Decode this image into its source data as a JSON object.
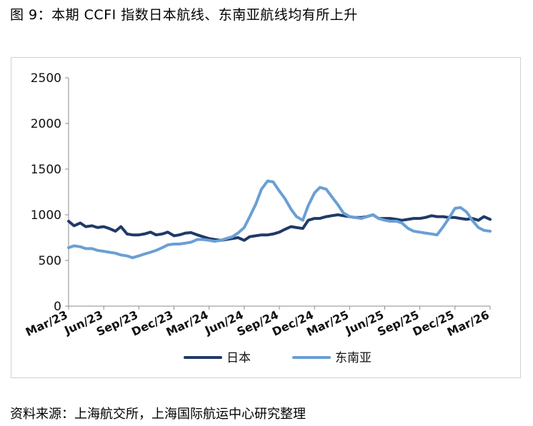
{
  "figure_title": "图 9：本期 CCFI 指数日本航线、东南亚航线均有所上升",
  "source_note": "资料来源：上海航交所，上海国际航运中心研究整理",
  "colors": {
    "japan": "#1f3a68",
    "sea": "#6a9fd4",
    "axis": "#8c8c8c"
  },
  "chart_data": {
    "type": "line",
    "title": "",
    "xlabel": "",
    "ylabel": "",
    "ylim": [
      0,
      2500
    ],
    "yticks": [
      0,
      500,
      1000,
      1500,
      2000,
      2500
    ],
    "xlim": [
      "2023-03",
      "2026-03"
    ],
    "xticks": [
      {
        "label": "Mar/23",
        "x": "2023-03"
      },
      {
        "label": "Jun/23",
        "x": "2023-06"
      },
      {
        "label": "Sep/23",
        "x": "2023-09"
      },
      {
        "label": "Dec/23",
        "x": "2023-12"
      },
      {
        "label": "Mar/24",
        "x": "2024-03"
      },
      {
        "label": "Jun/24",
        "x": "2024-06"
      },
      {
        "label": "Sep/24",
        "x": "2024-09"
      },
      {
        "label": "Dec/24",
        "x": "2024-12"
      },
      {
        "label": "Mar/25",
        "x": "2025-03"
      },
      {
        "label": "Jun/25",
        "x": "2025-06"
      },
      {
        "label": "Sep/25",
        "x": "2025-09"
      },
      {
        "label": "Dec/25",
        "x": "2025-12"
      },
      {
        "label": "Mar/26",
        "x": "2026-03"
      }
    ],
    "grid": false,
    "legend_position": "bottom",
    "series": [
      {
        "name": "日本",
        "color": "#1f3a68",
        "points": [
          [
            "2023-03",
            930
          ],
          [
            "2023-03-15",
            880
          ],
          [
            "2023-04",
            910
          ],
          [
            "2023-04-15",
            870
          ],
          [
            "2023-05",
            880
          ],
          [
            "2023-05-15",
            860
          ],
          [
            "2023-06",
            870
          ],
          [
            "2023-06-15",
            850
          ],
          [
            "2023-07",
            820
          ],
          [
            "2023-07-15",
            870
          ],
          [
            "2023-08",
            790
          ],
          [
            "2023-08-15",
            780
          ],
          [
            "2023-09",
            780
          ],
          [
            "2023-09-15",
            790
          ],
          [
            "2023-10",
            810
          ],
          [
            "2023-10-15",
            780
          ],
          [
            "2023-11",
            790
          ],
          [
            "2023-11-15",
            810
          ],
          [
            "2023-12",
            770
          ],
          [
            "2023-12-15",
            780
          ],
          [
            "2024-01",
            800
          ],
          [
            "2024-01-15",
            805
          ],
          [
            "2024-02",
            780
          ],
          [
            "2024-02-15",
            760
          ],
          [
            "2024-03",
            740
          ],
          [
            "2024-03-15",
            730
          ],
          [
            "2024-04",
            720
          ],
          [
            "2024-04-15",
            730
          ],
          [
            "2024-05",
            740
          ],
          [
            "2024-05-15",
            750
          ],
          [
            "2024-06",
            720
          ],
          [
            "2024-06-15",
            760
          ],
          [
            "2024-07",
            770
          ],
          [
            "2024-07-15",
            780
          ],
          [
            "2024-08",
            780
          ],
          [
            "2024-08-15",
            790
          ],
          [
            "2024-09",
            810
          ],
          [
            "2024-09-15",
            840
          ],
          [
            "2024-10",
            870
          ],
          [
            "2024-10-15",
            860
          ],
          [
            "2024-11",
            850
          ],
          [
            "2024-11-15",
            940
          ],
          [
            "2024-12",
            960
          ],
          [
            "2024-12-15",
            960
          ],
          [
            "2025-01",
            980
          ],
          [
            "2025-01-15",
            990
          ],
          [
            "2025-02",
            1000
          ],
          [
            "2025-02-15",
            990
          ],
          [
            "2025-03",
            980
          ],
          [
            "2025-03-15",
            970
          ],
          [
            "2025-04",
            970
          ],
          [
            "2025-04-15",
            980
          ],
          [
            "2025-05",
            1000
          ],
          [
            "2025-05-15",
            960
          ],
          [
            "2025-06",
            960
          ],
          [
            "2025-06-15",
            960
          ],
          [
            "2025-07",
            950
          ],
          [
            "2025-07-15",
            940
          ],
          [
            "2025-08",
            950
          ],
          [
            "2025-08-15",
            960
          ],
          [
            "2025-09",
            960
          ],
          [
            "2025-09-15",
            970
          ],
          [
            "2025-10",
            990
          ],
          [
            "2025-10-15",
            980
          ],
          [
            "2025-11",
            980
          ],
          [
            "2025-11-15",
            970
          ],
          [
            "2025-12",
            970
          ],
          [
            "2025-12-15",
            960
          ],
          [
            "2026-01",
            950
          ],
          [
            "2026-01-15",
            960
          ],
          [
            "2026-02",
            940
          ],
          [
            "2026-02-15",
            980
          ],
          [
            "2026-03",
            950
          ]
        ]
      },
      {
        "name": "东南亚",
        "color": "#6a9fd4",
        "points": [
          [
            "2023-03",
            640
          ],
          [
            "2023-03-15",
            660
          ],
          [
            "2023-04",
            650
          ],
          [
            "2023-04-15",
            630
          ],
          [
            "2023-05",
            630
          ],
          [
            "2023-05-15",
            610
          ],
          [
            "2023-06",
            600
          ],
          [
            "2023-06-15",
            590
          ],
          [
            "2023-07",
            580
          ],
          [
            "2023-07-15",
            560
          ],
          [
            "2023-08",
            550
          ],
          [
            "2023-08-15",
            530
          ],
          [
            "2023-09",
            550
          ],
          [
            "2023-09-15",
            570
          ],
          [
            "2023-10",
            590
          ],
          [
            "2023-10-15",
            610
          ],
          [
            "2023-11",
            640
          ],
          [
            "2023-11-15",
            670
          ],
          [
            "2023-12",
            680
          ],
          [
            "2023-12-15",
            680
          ],
          [
            "2024-01",
            690
          ],
          [
            "2024-01-15",
            700
          ],
          [
            "2024-02",
            730
          ],
          [
            "2024-02-15",
            730
          ],
          [
            "2024-03",
            720
          ],
          [
            "2024-03-15",
            710
          ],
          [
            "2024-04",
            720
          ],
          [
            "2024-04-15",
            740
          ],
          [
            "2024-05",
            760
          ],
          [
            "2024-05-15",
            800
          ],
          [
            "2024-06",
            860
          ],
          [
            "2024-06-15",
            980
          ],
          [
            "2024-07",
            1120
          ],
          [
            "2024-07-15",
            1280
          ],
          [
            "2024-08",
            1370
          ],
          [
            "2024-08-15",
            1360
          ],
          [
            "2024-09",
            1260
          ],
          [
            "2024-09-15",
            1180
          ],
          [
            "2024-10",
            1060
          ],
          [
            "2024-10-15",
            980
          ],
          [
            "2024-11",
            940
          ],
          [
            "2024-11-15",
            1100
          ],
          [
            "2024-12",
            1240
          ],
          [
            "2024-12-15",
            1300
          ],
          [
            "2025-01",
            1280
          ],
          [
            "2025-01-15",
            1200
          ],
          [
            "2025-02",
            1110
          ],
          [
            "2025-02-15",
            1020
          ],
          [
            "2025-03",
            980
          ],
          [
            "2025-03-15",
            970
          ],
          [
            "2025-04",
            960
          ],
          [
            "2025-04-15",
            980
          ],
          [
            "2025-05",
            1000
          ],
          [
            "2025-05-15",
            960
          ],
          [
            "2025-06",
            940
          ],
          [
            "2025-06-15",
            930
          ],
          [
            "2025-07",
            930
          ],
          [
            "2025-07-15",
            910
          ],
          [
            "2025-08",
            850
          ],
          [
            "2025-08-15",
            820
          ],
          [
            "2025-09",
            810
          ],
          [
            "2025-09-15",
            800
          ],
          [
            "2025-10",
            790
          ],
          [
            "2025-10-15",
            780
          ],
          [
            "2025-11",
            870
          ],
          [
            "2025-11-15",
            960
          ],
          [
            "2025-12",
            1070
          ],
          [
            "2025-12-15",
            1080
          ],
          [
            "2026-01",
            1030
          ],
          [
            "2026-01-15",
            940
          ],
          [
            "2026-02",
            860
          ],
          [
            "2026-02-15",
            830
          ],
          [
            "2026-03",
            820
          ]
        ]
      }
    ]
  }
}
